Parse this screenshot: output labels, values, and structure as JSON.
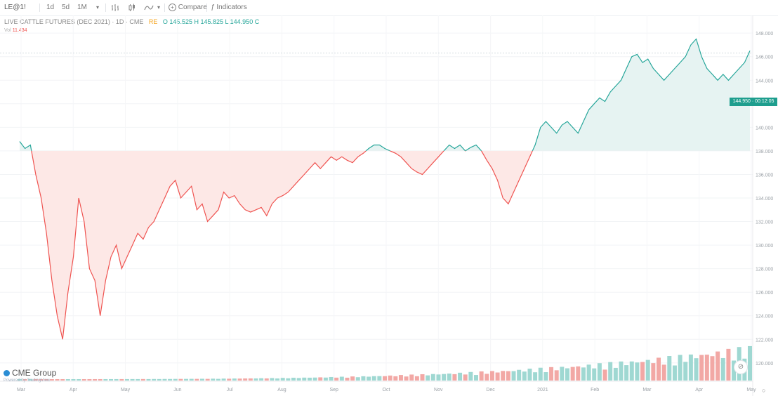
{
  "toolbar": {
    "symbol": "LE@1!",
    "intervals": [
      "1d",
      "5d",
      "1M"
    ],
    "dropdown_icon": "chevron-down-icon",
    "compare_label": "Compare",
    "indicators_label": "Indicators"
  },
  "legend": {
    "title": "LIVE CATTLE FUTURES (DEC 2021) · 1D · CME",
    "values": "O 145.525 H 145.825 L 144.950 C",
    "badge": "RE",
    "sub_label": "Vol",
    "sub_value": "11.434"
  },
  "price_tag": "144.950 · 00:12:05",
  "logo": {
    "name": "CME Group",
    "sub": "Powered by TradingView"
  },
  "colors": {
    "up": "#26a69a",
    "down": "#ef5350",
    "up_fill": "#e6f3f2",
    "down_fill": "#fde8e6",
    "vol_up": "#9fd8d2",
    "vol_down": "#f2a8a5"
  },
  "chart_data": {
    "type": "area",
    "title": "",
    "baseline": 138.0,
    "ylim": [
      118.5,
      149.5
    ],
    "x_tick_labels": [
      "Mar",
      "Apr",
      "May",
      "Jun",
      "Jul",
      "Aug",
      "Sep",
      "Oct",
      "Nov",
      "Dec",
      "2021",
      "Feb",
      "Mar",
      "Apr",
      "May"
    ],
    "y_tick_labels": [
      "148.000",
      "146.000",
      "144.000",
      "142.000",
      "140.000",
      "138.000",
      "136.000",
      "134.000",
      "132.000",
      "130.000",
      "128.000",
      "126.000",
      "124.000",
      "122.000",
      "120.000"
    ],
    "y_ticks": [
      148,
      146,
      144,
      142,
      140,
      138,
      136,
      134,
      132,
      130,
      128,
      126,
      124,
      122,
      120
    ],
    "price": [
      138.8,
      138.2,
      138.5,
      136.0,
      134.0,
      131.0,
      127.0,
      124.0,
      122.0,
      126.0,
      129.0,
      134.0,
      132.0,
      128.0,
      127.0,
      124.0,
      127.0,
      129.0,
      130.0,
      128.0,
      129.0,
      130.0,
      131.0,
      130.5,
      131.5,
      132.0,
      133.0,
      134.0,
      135.0,
      135.5,
      134.0,
      134.5,
      135.0,
      133.0,
      133.5,
      132.0,
      132.5,
      133.0,
      134.5,
      134.0,
      134.2,
      133.5,
      133.0,
      132.8,
      133.0,
      133.2,
      132.5,
      133.5,
      134.0,
      134.2,
      134.5,
      135.0,
      135.5,
      136.0,
      136.5,
      137.0,
      136.5,
      137.0,
      137.5,
      137.2,
      137.5,
      137.2,
      137.0,
      137.5,
      137.8,
      138.2,
      138.5,
      138.5,
      138.2,
      138.0,
      137.8,
      137.5,
      137.0,
      136.5,
      136.2,
      136.0,
      136.5,
      137.0,
      137.5,
      138.0,
      138.5,
      138.2,
      138.5,
      138.0,
      138.3,
      138.5,
      138.0,
      137.2,
      136.5,
      135.5,
      134.0,
      133.5,
      134.5,
      135.5,
      136.5,
      137.5,
      138.5,
      140.0,
      140.5,
      140.0,
      139.5,
      140.2,
      140.5,
      140.0,
      139.5,
      140.5,
      141.5,
      142.0,
      142.5,
      142.2,
      143.0,
      143.5,
      144.0,
      145.0,
      146.0,
      146.2,
      145.5,
      145.8,
      145.0,
      144.5,
      144.0,
      144.5,
      145.0,
      145.5,
      146.0,
      147.0,
      147.5,
      146.0,
      145.0,
      144.5,
      144.0,
      144.5,
      144.0,
      144.5,
      145.0,
      145.5,
      146.5
    ]
  }
}
